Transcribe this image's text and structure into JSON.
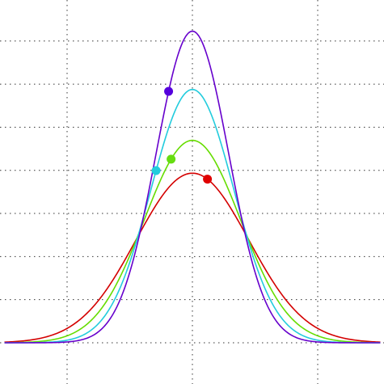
{
  "chart_data": {
    "type": "line",
    "title": "",
    "xlabel": "",
    "ylabel": "",
    "xlim": [
      -1.5,
      1.5
    ],
    "ylim": [
      0,
      1.0
    ],
    "grid": true,
    "vertical_gridlines": [
      -1,
      0,
      1
    ],
    "horizontal_gridlines": [
      0.122,
      0.244,
      0.366,
      0.488,
      0.61,
      0.732,
      0.854
    ],
    "series": [
      {
        "sigma": 0.45,
        "peak": 0.48,
        "color": "#d40000",
        "marker": {
          "x": 0.12,
          "color": "#e00000"
        }
      },
      {
        "sigma": 0.385,
        "peak": 0.573,
        "color": "#66dd00",
        "marker": {
          "x": -0.17,
          "color": "#66dd11"
        }
      },
      {
        "sigma": 0.33,
        "peak": 0.717,
        "color": "#22ccdd",
        "marker": {
          "x": -0.29,
          "color": "#22ccdd"
        }
      },
      {
        "sigma": 0.29,
        "peak": 0.882,
        "color": "#6600cc",
        "marker": {
          "x": -0.19,
          "color": "#5500dd"
        }
      }
    ]
  }
}
